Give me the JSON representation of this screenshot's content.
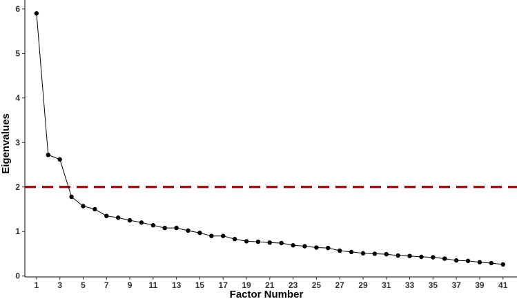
{
  "chart_data": {
    "type": "line",
    "title": "",
    "xlabel": "Factor Number",
    "ylabel": "Eigenvalues",
    "x": [
      1,
      2,
      3,
      4,
      5,
      6,
      7,
      8,
      9,
      10,
      11,
      12,
      13,
      14,
      15,
      16,
      17,
      18,
      19,
      20,
      21,
      22,
      23,
      24,
      25,
      26,
      27,
      28,
      29,
      30,
      31,
      32,
      33,
      34,
      35,
      36,
      37,
      38,
      39,
      40,
      41
    ],
    "series": [
      {
        "name": "",
        "values": [
          5.9,
          2.72,
          2.62,
          1.78,
          1.57,
          1.5,
          1.35,
          1.31,
          1.25,
          1.2,
          1.14,
          1.08,
          1.08,
          1.02,
          0.97,
          0.9,
          0.9,
          0.83,
          0.78,
          0.77,
          0.75,
          0.74,
          0.69,
          0.67,
          0.64,
          0.63,
          0.57,
          0.54,
          0.51,
          0.5,
          0.49,
          0.46,
          0.45,
          0.43,
          0.42,
          0.39,
          0.35,
          0.34,
          0.31,
          0.29,
          0.26
        ],
        "color": "#000000"
      }
    ],
    "reference_line": {
      "y": 2,
      "color": "#a50000",
      "style": "dashed"
    },
    "xticks": [
      1,
      3,
      5,
      7,
      9,
      11,
      13,
      15,
      17,
      19,
      21,
      23,
      25,
      27,
      29,
      31,
      33,
      35,
      37,
      39,
      41
    ],
    "yticks": [
      0,
      1,
      2,
      3,
      4,
      5,
      6
    ],
    "xlim": [
      0,
      42.2
    ],
    "ylim": [
      -0.02,
      6.2
    ],
    "grid": false,
    "legend": "none"
  }
}
